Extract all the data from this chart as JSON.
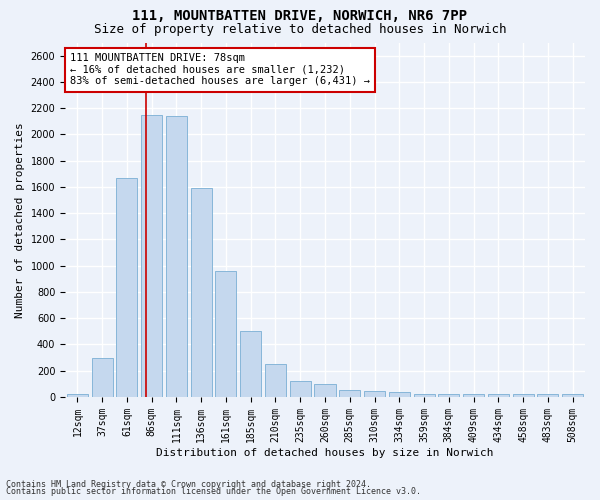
{
  "title_line1": "111, MOUNTBATTEN DRIVE, NORWICH, NR6 7PP",
  "title_line2": "Size of property relative to detached houses in Norwich",
  "xlabel": "Distribution of detached houses by size in Norwich",
  "ylabel": "Number of detached properties",
  "bar_color": "#c5d8ee",
  "bar_edge_color": "#7aafd4",
  "categories": [
    "12sqm",
    "37sqm",
    "61sqm",
    "86sqm",
    "111sqm",
    "136sqm",
    "161sqm",
    "185sqm",
    "210sqm",
    "235sqm",
    "260sqm",
    "285sqm",
    "310sqm",
    "334sqm",
    "359sqm",
    "384sqm",
    "409sqm",
    "434sqm",
    "458sqm",
    "483sqm",
    "508sqm"
  ],
  "values": [
    25,
    300,
    1670,
    2150,
    2140,
    1590,
    960,
    500,
    250,
    120,
    100,
    50,
    45,
    35,
    20,
    20,
    20,
    20,
    20,
    20,
    25
  ],
  "ylim": [
    0,
    2700
  ],
  "yticks": [
    0,
    200,
    400,
    600,
    800,
    1000,
    1200,
    1400,
    1600,
    1800,
    2000,
    2200,
    2400,
    2600
  ],
  "vline_pos": 2.78,
  "vline_color": "#cc0000",
  "annotation_text": "111 MOUNTBATTEN DRIVE: 78sqm\n← 16% of detached houses are smaller (1,232)\n83% of semi-detached houses are larger (6,431) →",
  "annotation_box_color": "#ffffff",
  "annotation_box_edge_color": "#cc0000",
  "footer_line1": "Contains HM Land Registry data © Crown copyright and database right 2024.",
  "footer_line2": "Contains public sector information licensed under the Open Government Licence v3.0.",
  "background_color": "#edf2fa",
  "plot_background_color": "#edf2fa",
  "grid_color": "#ffffff",
  "title_fontsize": 10,
  "subtitle_fontsize": 9,
  "axis_label_fontsize": 8,
  "tick_fontsize": 7,
  "annotation_fontsize": 7.5,
  "footer_fontsize": 6
}
